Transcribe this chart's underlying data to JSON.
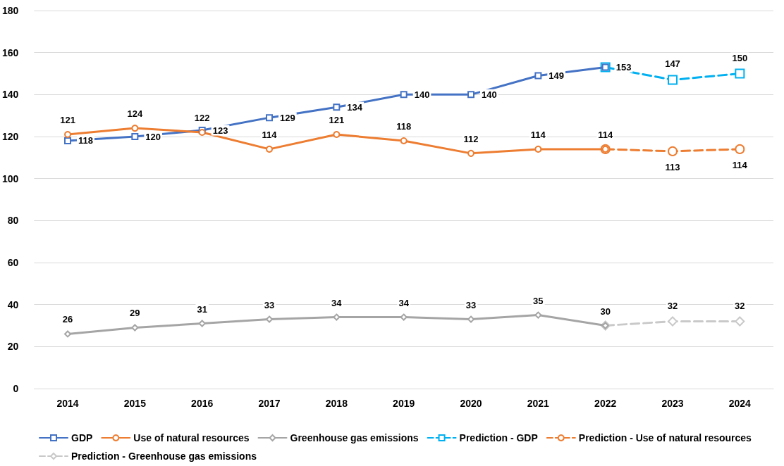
{
  "chart_data": {
    "type": "line",
    "categories": [
      "2014",
      "2015",
      "2016",
      "2017",
      "2018",
      "2019",
      "2020",
      "2021",
      "2022",
      "2023",
      "2024"
    ],
    "ylim": [
      0,
      180
    ],
    "yticks": [
      0,
      20,
      40,
      60,
      80,
      100,
      120,
      140,
      160,
      180
    ],
    "grid": "y",
    "legend": "bottom",
    "series": [
      {
        "name": "GDP",
        "color": "#4472c4",
        "marker": "square",
        "line_style": "solid",
        "values": [
          118,
          120,
          123,
          129,
          134,
          140,
          140,
          149,
          153,
          null,
          null
        ],
        "value_labels": [
          "118",
          "120",
          "123",
          "129",
          "134",
          "140",
          "140",
          "149",
          "153",
          null,
          null
        ]
      },
      {
        "name": "Use of natural resources",
        "color": "#ed7d31",
        "marker": "circle",
        "line_style": "solid",
        "values": [
          121,
          124,
          122,
          114,
          121,
          118,
          112,
          114,
          114,
          null,
          null
        ],
        "value_labels": [
          "121",
          "124",
          "122",
          "114",
          "121",
          "118",
          "112",
          "114",
          "114",
          null,
          null
        ]
      },
      {
        "name": "Greenhouse gas emissions",
        "color": "#a5a5a5",
        "marker": "diamond",
        "line_style": "solid",
        "values": [
          26,
          29,
          31,
          33,
          34,
          34,
          33,
          35,
          30,
          null,
          null
        ],
        "value_labels": [
          "26",
          "29",
          "31",
          "33",
          "34",
          "34",
          "33",
          "35",
          "30",
          null,
          null
        ]
      },
      {
        "name": "Prediction - GDP",
        "color": "#00b0f0",
        "marker": "square",
        "line_style": "dashed",
        "values": [
          null,
          null,
          null,
          null,
          null,
          null,
          null,
          null,
          153,
          147,
          150
        ],
        "value_labels": [
          null,
          null,
          null,
          null,
          null,
          null,
          null,
          null,
          null,
          "147",
          "150"
        ]
      },
      {
        "name": "Prediction - Use of natural resources",
        "color": "#ed7d31",
        "marker": "circle",
        "line_style": "dashed",
        "values": [
          null,
          null,
          null,
          null,
          null,
          null,
          null,
          null,
          114,
          113,
          114
        ],
        "value_labels": [
          null,
          null,
          null,
          null,
          null,
          null,
          null,
          null,
          null,
          "113",
          "114"
        ]
      },
      {
        "name": "Prediction - Greenhouse gas emissions",
        "color": "#c9c9c9",
        "marker": "diamond",
        "line_style": "dashed",
        "values": [
          null,
          null,
          null,
          null,
          null,
          null,
          null,
          null,
          30,
          32,
          32
        ],
        "value_labels": [
          null,
          null,
          null,
          null,
          null,
          null,
          null,
          null,
          null,
          "32",
          "32"
        ]
      }
    ]
  }
}
